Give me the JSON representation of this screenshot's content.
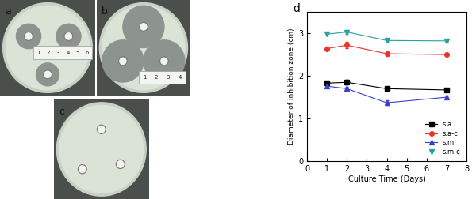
{
  "photos": [
    {
      "label": "a",
      "ruler": [
        "1",
        "2",
        "3",
        "4",
        "5",
        "6"
      ]
    },
    {
      "label": "b",
      "ruler": [
        "1",
        "2",
        "3",
        "4"
      ]
    },
    {
      "label": "c"
    }
  ],
  "chart_data": {
    "type": "line",
    "label": "d",
    "x_label": "Culture Time (Days)",
    "y_label": "Diameter of inhibition zone (cm)",
    "x": [
      1,
      2,
      4,
      7
    ],
    "xlim": [
      0,
      8
    ],
    "xticks": [
      0,
      1,
      2,
      3,
      4,
      5,
      6,
      7,
      8
    ],
    "ylim": [
      0,
      3.5
    ],
    "yticks": [
      0,
      1,
      2,
      3
    ],
    "legend": "lower right",
    "series": [
      {
        "name": "s.a",
        "color": "#000000",
        "marker": "square",
        "values": [
          1.83,
          1.85,
          1.7,
          1.67
        ],
        "errors": [
          0.05,
          0.06,
          0.04,
          0.03
        ]
      },
      {
        "name": "s.a-c",
        "color": "#e8322b",
        "marker": "circle",
        "values": [
          2.64,
          2.72,
          2.52,
          2.5
        ],
        "errors": [
          0.05,
          0.07,
          0.05,
          0.04
        ]
      },
      {
        "name": "s.m",
        "color": "#3b3fd1",
        "marker": "triangle_up",
        "values": [
          1.76,
          1.7,
          1.37,
          1.5
        ],
        "errors": [
          0.04,
          0.05,
          0.06,
          0.04
        ]
      },
      {
        "name": "s.m-c",
        "color": "#2aa0a0",
        "marker": "triangle_down",
        "values": [
          2.98,
          3.03,
          2.83,
          2.82
        ],
        "errors": [
          0.04,
          0.05,
          0.04,
          0.03
        ]
      }
    ]
  }
}
